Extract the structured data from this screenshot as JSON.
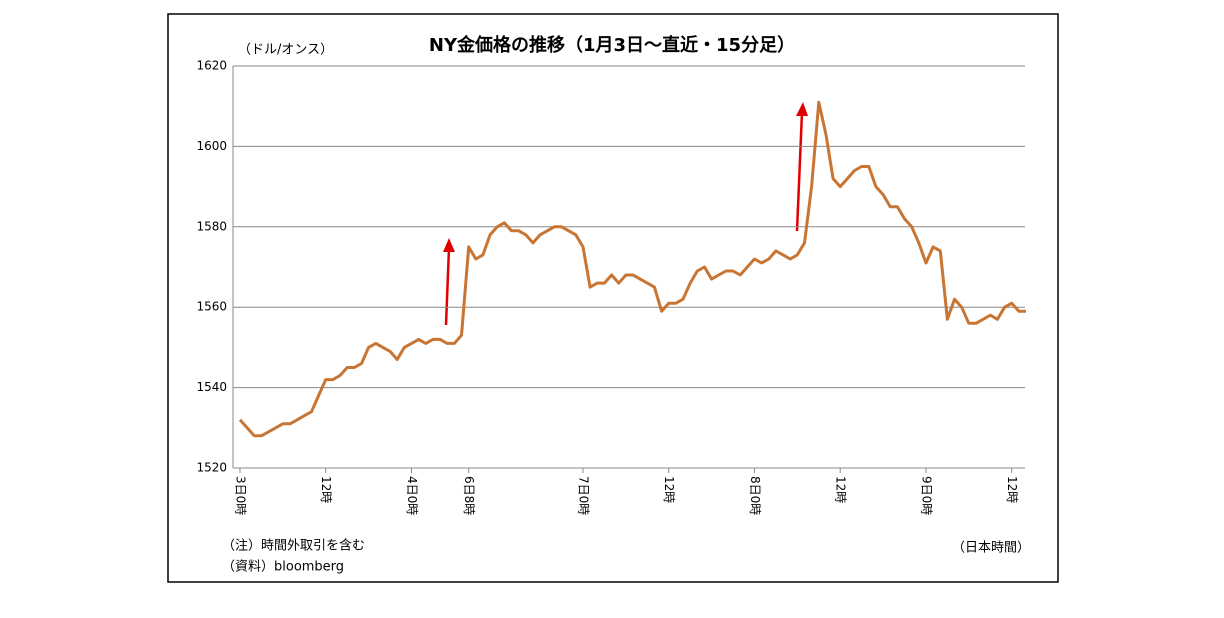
{
  "chart_data": {
    "type": "line",
    "title": "NY金価格の推移（1月3日～直近・15分足）",
    "y_label": "（ドル/オンス）",
    "notes": [
      "（注）時間外取引を含む",
      "（資料）bloomberg"
    ],
    "x_label": "（日本時間）",
    "categories": [
      "3日0時",
      null,
      null,
      null,
      null,
      null,
      null,
      null,
      null,
      null,
      null,
      null,
      "12時",
      null,
      null,
      null,
      null,
      null,
      null,
      null,
      null,
      null,
      null,
      null,
      "4日0時",
      null,
      null,
      null,
      null,
      null,
      null,
      null,
      "6日8時",
      null,
      null,
      null,
      null,
      null,
      null,
      null,
      null,
      null,
      null,
      null,
      null,
      null,
      null,
      null,
      "7日0時",
      null,
      null,
      null,
      null,
      null,
      null,
      null,
      null,
      null,
      null,
      null,
      "12時",
      null,
      null,
      null,
      null,
      null,
      null,
      null,
      null,
      null,
      null,
      null,
      "8日0時",
      null,
      null,
      null,
      null,
      null,
      null,
      null,
      null,
      null,
      null,
      null,
      "12時",
      null,
      null,
      null,
      null,
      null,
      null,
      null,
      null,
      null,
      null,
      null,
      "9日0時",
      null,
      null,
      null,
      null,
      null,
      null,
      null,
      null,
      null,
      null,
      null,
      "12時",
      null,
      null
    ],
    "values": [
      1532,
      1530,
      1528,
      1528,
      1529,
      1530,
      1531,
      1531,
      1532,
      1533,
      1534,
      1538,
      1542,
      1542,
      1543,
      1545,
      1545,
      1546,
      1550,
      1551,
      1550,
      1549,
      1547,
      1550,
      1551,
      1552,
      1551,
      1552,
      1552,
      1551,
      1551,
      1553,
      1575,
      1572,
      1573,
      1578,
      1580,
      1581,
      1579,
      1579,
      1578,
      1576,
      1578,
      1579,
      1580,
      1580,
      1579,
      1578,
      1575,
      1565,
      1566,
      1566,
      1568,
      1566,
      1568,
      1568,
      1567,
      1566,
      1565,
      1559,
      1561,
      1561,
      1562,
      1566,
      1569,
      1570,
      1567,
      1568,
      1569,
      1569,
      1568,
      1570,
      1572,
      1571,
      1572,
      1574,
      1573,
      1572,
      1573,
      1576,
      1590,
      1611,
      1603,
      1592,
      1590,
      1592,
      1594,
      1595,
      1595,
      1590,
      1588,
      1585,
      1585,
      1582,
      1580,
      1576,
      1571,
      1575,
      1574,
      1557,
      1562,
      1560,
      1556,
      1556,
      1557,
      1558,
      1557,
      1560,
      1561,
      1559,
      1559
    ],
    "color": "#c87533",
    "ylim": [
      1520,
      1620
    ],
    "yticks": [
      1520,
      1540,
      1560,
      1580,
      1600,
      1620
    ],
    "grid": true
  }
}
